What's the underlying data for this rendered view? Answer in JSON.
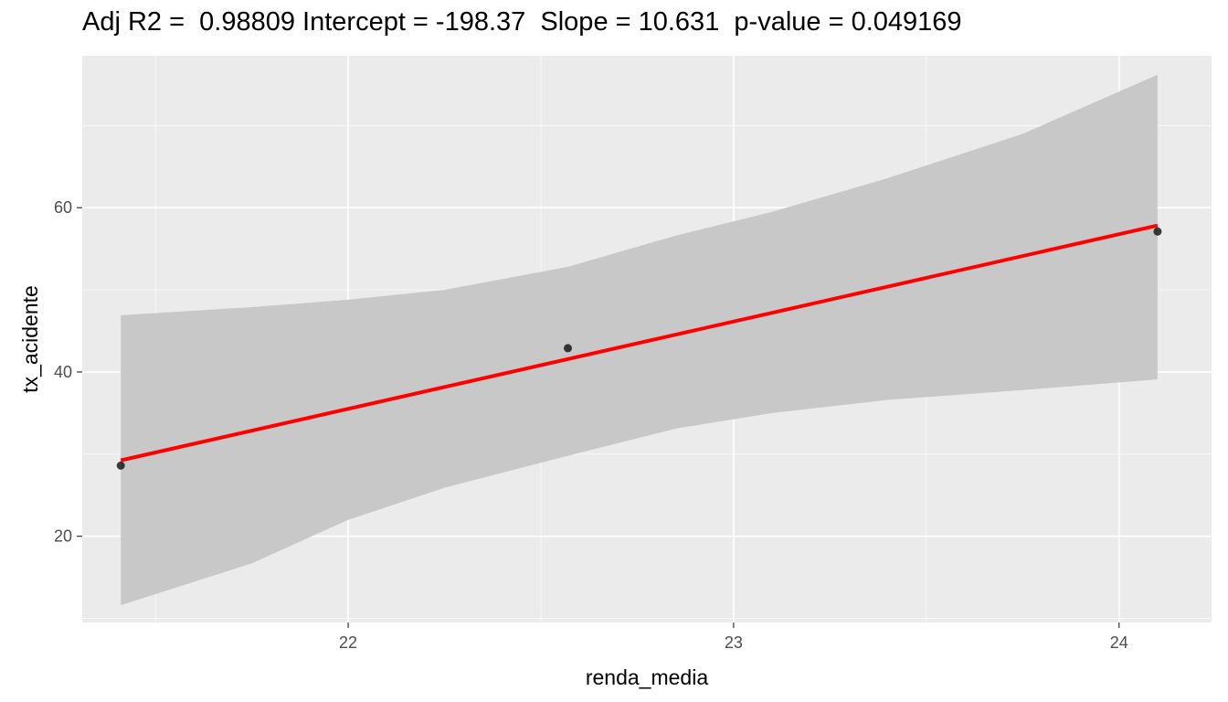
{
  "chart_data": {
    "type": "scatter",
    "title": "Adj R2 =  0.98809 Intercept = -198.37  Slope = 10.631  p-value = 0.049169",
    "xlabel": "renda_media",
    "ylabel": "tx_acidente",
    "xlim": [
      21.31,
      24.24
    ],
    "ylim": [
      9.5,
      78.5
    ],
    "x_ticks": [
      22,
      23,
      24
    ],
    "y_ticks": [
      20,
      40,
      60
    ],
    "grid": true,
    "legend": "none",
    "points": [
      {
        "x": 21.41,
        "y": 28.6
      },
      {
        "x": 22.57,
        "y": 42.9
      },
      {
        "x": 24.1,
        "y": 57.1
      }
    ],
    "fit_line": {
      "intercept": -198.37,
      "slope": 10.631,
      "x_range": [
        21.41,
        24.1
      ],
      "color": "#ff0000"
    },
    "confidence_band": [
      {
        "x": 21.41,
        "lower": 11.6,
        "upper": 46.9
      },
      {
        "x": 21.75,
        "lower": 16.7,
        "upper": 47.9
      },
      {
        "x": 22.0,
        "lower": 22.0,
        "upper": 48.8
      },
      {
        "x": 22.25,
        "lower": 25.9,
        "upper": 50.0
      },
      {
        "x": 22.57,
        "lower": 29.8,
        "upper": 52.8
      },
      {
        "x": 22.85,
        "lower": 33.1,
        "upper": 56.6
      },
      {
        "x": 23.1,
        "lower": 35.0,
        "upper": 59.5
      },
      {
        "x": 23.4,
        "lower": 36.6,
        "upper": 63.6
      },
      {
        "x": 23.75,
        "lower": 37.8,
        "upper": 69.0
      },
      {
        "x": 24.1,
        "lower": 39.1,
        "upper": 76.2
      }
    ],
    "colors": {
      "panel": "#ebebeb",
      "grid": "#ffffff",
      "band": "#c8c8c8",
      "points": "#000000",
      "line": "#ff0000"
    }
  }
}
